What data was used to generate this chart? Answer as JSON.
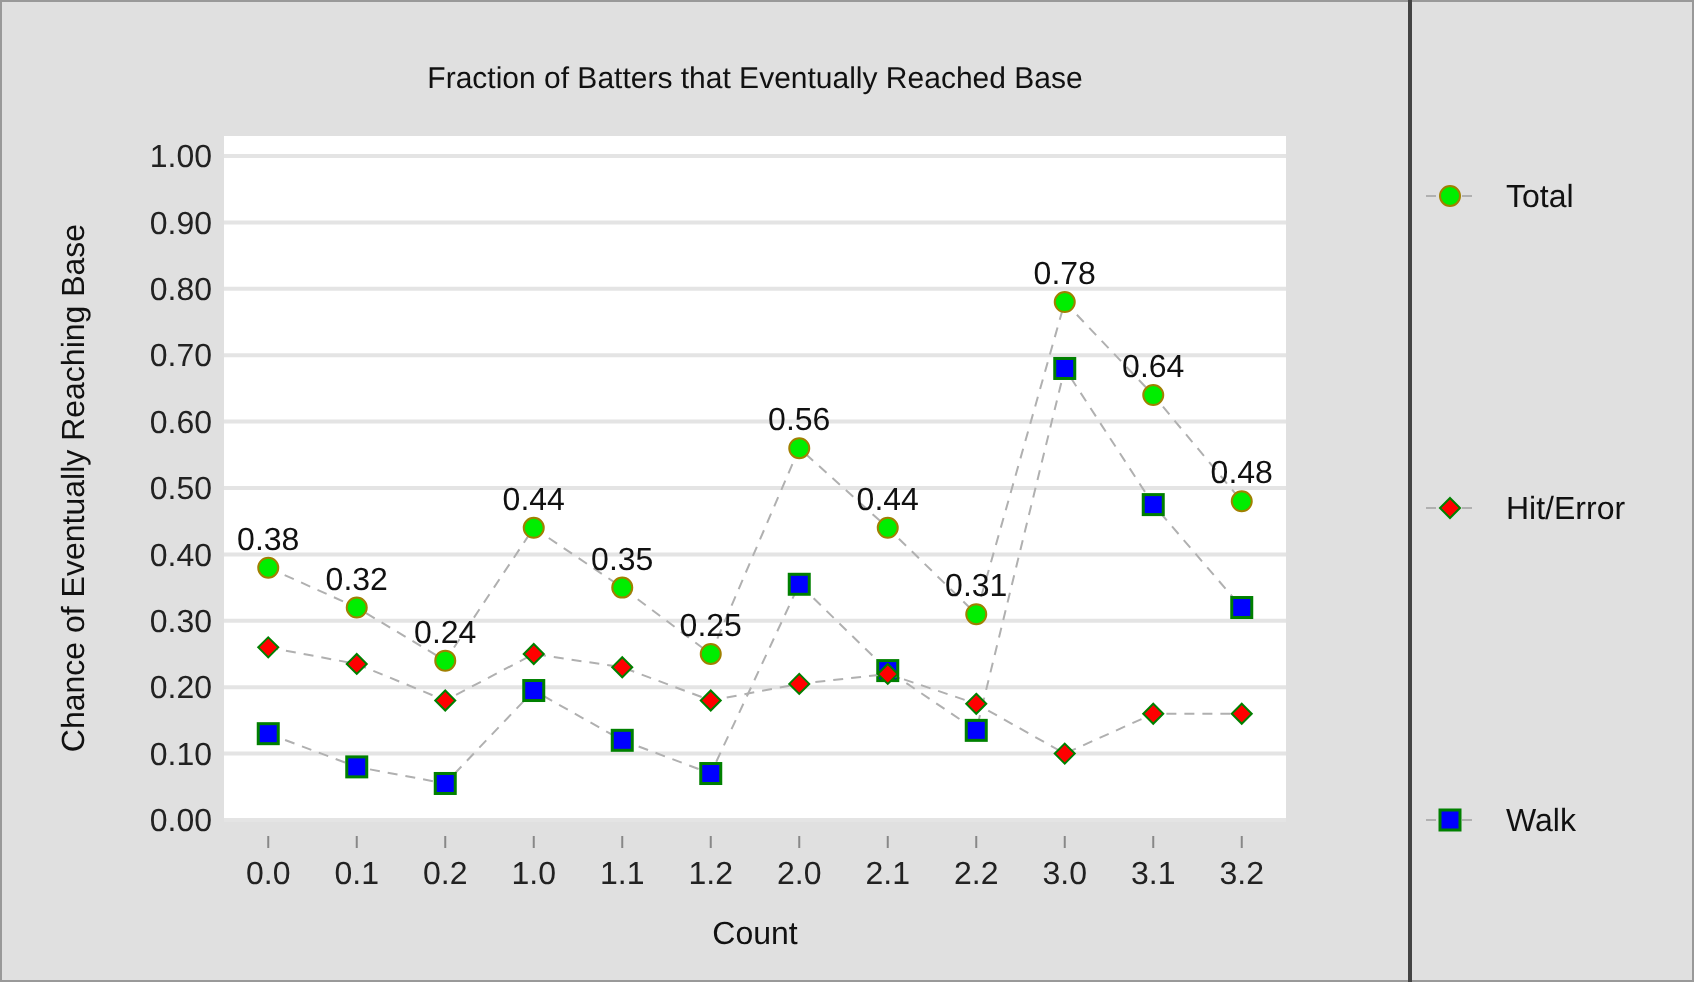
{
  "chart_data": {
    "type": "line",
    "title": "Fraction of Batters that Eventually Reached Base",
    "xlabel": "Count",
    "ylabel": "Chance of Eventually Reaching Base",
    "categories": [
      "0.0",
      "0.1",
      "0.2",
      "1.0",
      "1.1",
      "1.2",
      "2.0",
      "2.1",
      "2.2",
      "3.0",
      "3.1",
      "3.2"
    ],
    "series": [
      {
        "name": "Total",
        "color": "#00ee00",
        "marker": "circle",
        "values": [
          0.38,
          0.32,
          0.24,
          0.44,
          0.35,
          0.25,
          0.56,
          0.44,
          0.31,
          0.78,
          0.64,
          0.48
        ],
        "value_labels": [
          "0.38",
          "0.32",
          "0.24",
          "0.44",
          "0.35",
          "0.25",
          "0.56",
          "0.44",
          "0.31",
          "0.78",
          "0.64",
          "0.48"
        ]
      },
      {
        "name": "Hit/Error",
        "color": "#ff0000",
        "marker": "diamond",
        "values": [
          0.26,
          0.235,
          0.18,
          0.25,
          0.23,
          0.18,
          0.205,
          0.22,
          0.175,
          0.1,
          0.16,
          0.16
        ]
      },
      {
        "name": "Walk",
        "color": "#0000ff",
        "marker": "square",
        "values": [
          0.13,
          0.08,
          0.055,
          0.195,
          0.12,
          0.07,
          0.355,
          0.225,
          0.135,
          0.68,
          0.475,
          0.32
        ]
      }
    ],
    "ylim": [
      0,
      1
    ],
    "yticks": [
      {
        "value": 0,
        "label": "0.00"
      },
      {
        "value": 0.1,
        "label": "0.10"
      },
      {
        "value": 0.2,
        "label": "0.20"
      },
      {
        "value": 0.3,
        "label": "0.30"
      },
      {
        "value": 0.4,
        "label": "0.40"
      },
      {
        "value": 0.5,
        "label": "0.50"
      },
      {
        "value": 0.6,
        "label": "0.60"
      },
      {
        "value": 0.7,
        "label": "0.70"
      },
      {
        "value": 0.8,
        "label": "0.80"
      },
      {
        "value": 0.9,
        "label": "0.90"
      },
      {
        "value": 1,
        "label": "1.00"
      }
    ],
    "grid": "y",
    "legend": "right",
    "line_style": "dashed"
  }
}
